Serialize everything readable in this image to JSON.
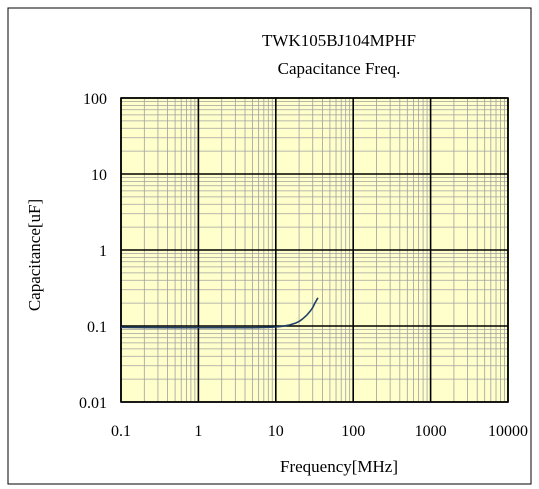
{
  "chart_data": {
    "type": "line",
    "title": "TWK105BJ104MPHF",
    "subtitle": "Capacitance Freq.",
    "xlabel": "Frequency[MHz]",
    "ylabel": "Capacitance[uF]",
    "x_scale": "log",
    "y_scale": "log",
    "xlim": [
      0.1,
      10000
    ],
    "ylim": [
      0.01,
      100
    ],
    "x_tick_labels": [
      "0.1",
      "1",
      "10",
      "100",
      "1000",
      "10000"
    ],
    "y_tick_labels": [
      "0.01",
      "0.1",
      "1",
      "10",
      "100"
    ],
    "grid": true,
    "legend": "none",
    "plot_background": "#FFFFCC",
    "major_grid_color": "#000000",
    "minor_grid_color": "#A0A0A0",
    "line_color": "#1F3F66",
    "series": [
      {
        "x": [
          0.1,
          0.2,
          0.5,
          1,
          2,
          5,
          8,
          10,
          12,
          15,
          18,
          20,
          22,
          25,
          28,
          30,
          32,
          35
        ],
        "values": [
          0.096,
          0.0955,
          0.095,
          0.095,
          0.095,
          0.095,
          0.096,
          0.097,
          0.099,
          0.103,
          0.109,
          0.115,
          0.123,
          0.138,
          0.158,
          0.175,
          0.2,
          0.235
        ]
      }
    ]
  }
}
